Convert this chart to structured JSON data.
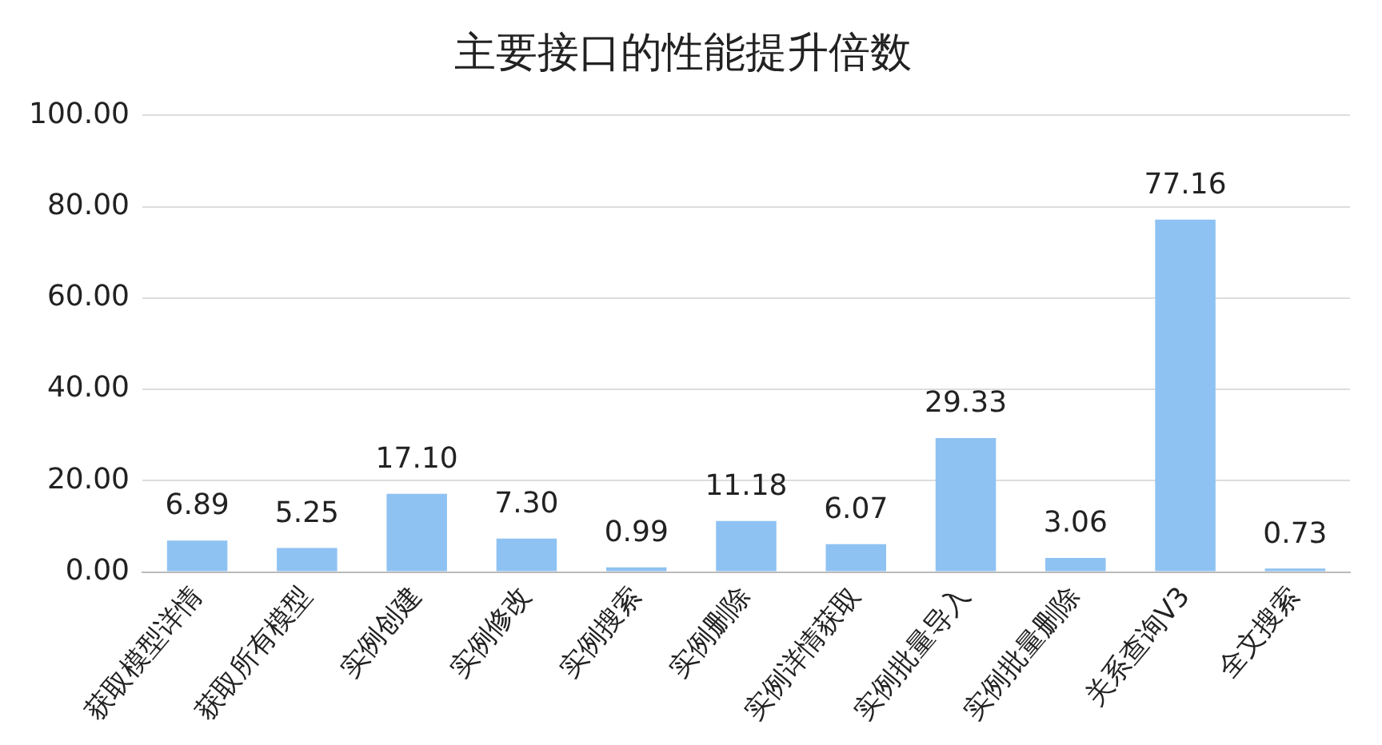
{
  "chart_data": {
    "type": "bar",
    "title": "主要接口的性能提升倍数",
    "categories": [
      "获取模型详情",
      "获取所有模型",
      "实例创建",
      "实例修改",
      "实例搜索",
      "实例删除",
      "实例详情获取",
      "实例批量导入",
      "实例批量删除",
      "关系查询V3",
      "全文搜索"
    ],
    "values": [
      6.89,
      5.25,
      17.1,
      7.3,
      0.99,
      11.18,
      6.07,
      29.33,
      3.06,
      77.16,
      0.73
    ],
    "value_labels": [
      "6.89",
      "5.25",
      "17.10",
      "7.30",
      "0.99",
      "11.18",
      "6.07",
      "29.33",
      "3.06",
      "77.16",
      "0.73"
    ],
    "color": "#8ec2f2",
    "ylim": [
      0,
      100
    ],
    "yticks": [
      {
        "value": 0,
        "label": "0.00"
      },
      {
        "value": 20,
        "label": "20.00"
      },
      {
        "value": 40,
        "label": "40.00"
      },
      {
        "value": 60,
        "label": "60.00"
      },
      {
        "value": 80,
        "label": "80.00"
      },
      {
        "value": 100,
        "label": "100.00"
      }
    ],
    "grid": "y"
  }
}
